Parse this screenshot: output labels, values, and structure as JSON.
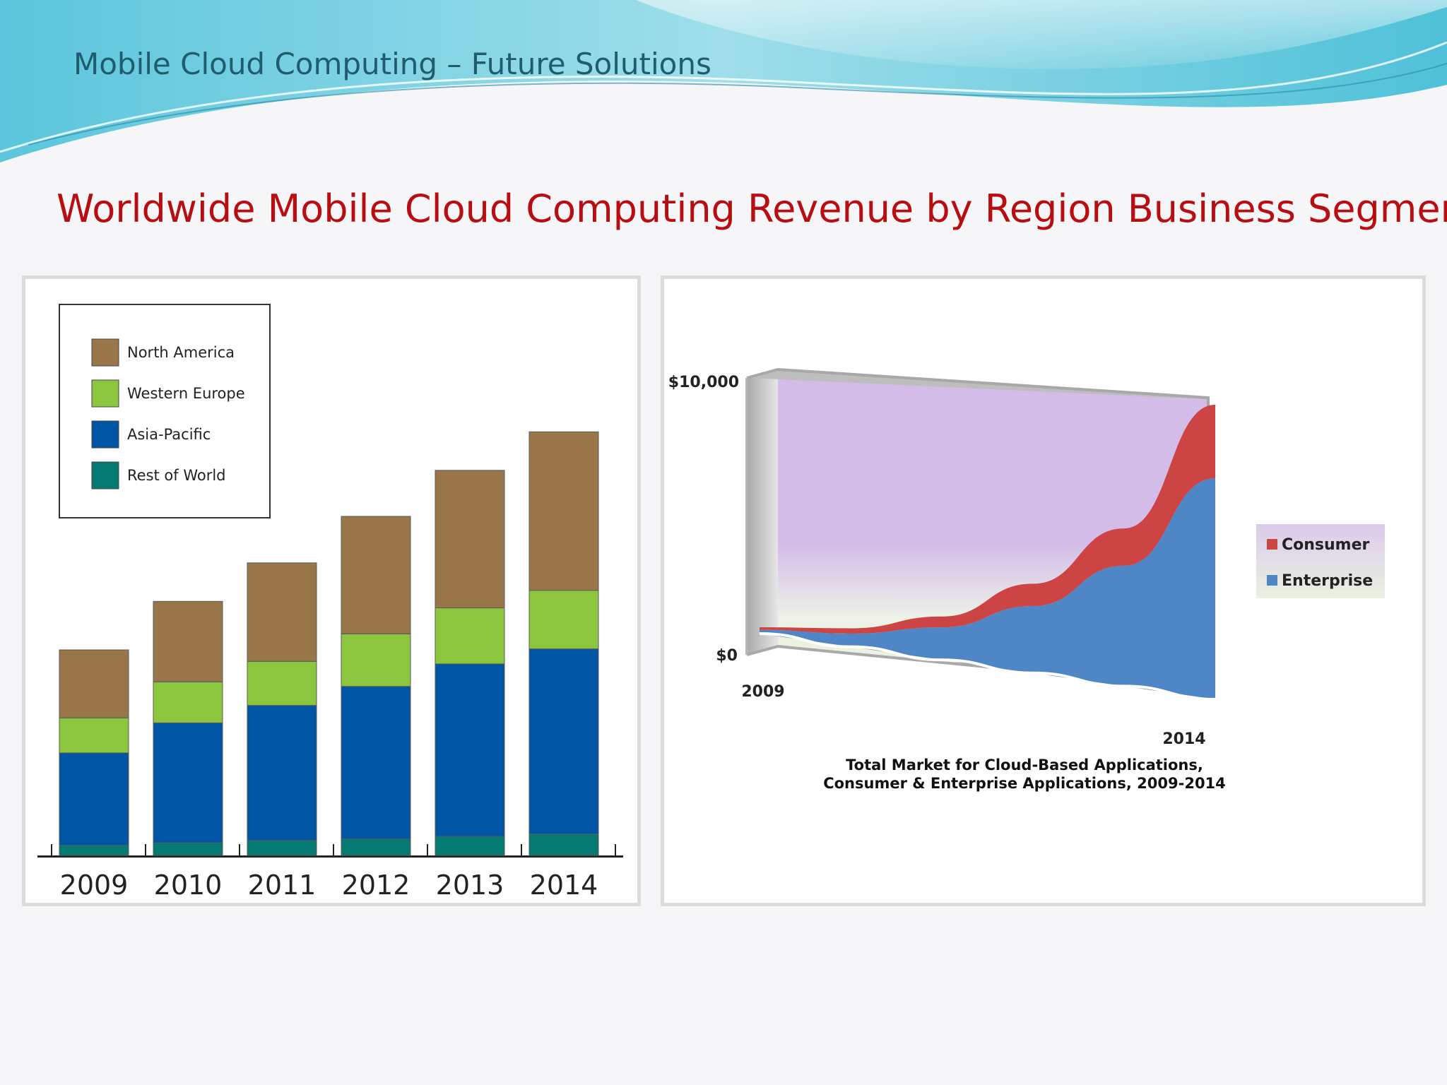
{
  "header": {
    "title": "Mobile Cloud Computing – Future Solutions"
  },
  "slide": {
    "title": "Worldwide Mobile Cloud Computing Revenue by Region Business Segment"
  },
  "colors": {
    "north_america": "#98764a",
    "western_europe": "#8cc63f",
    "asia_pacific": "#0055a5",
    "rest_of_world": "#057a73",
    "consumer": "#cc4444",
    "enterprise": "#4f86c6",
    "back_wall": "#d3bde8",
    "header_title": "#1f5d6e",
    "slide_title": "#b80e12"
  },
  "chart_data": [
    {
      "type": "bar",
      "stacked": true,
      "categories": [
        "2009",
        "2010",
        "2011",
        "2012",
        "2013",
        "2014"
      ],
      "series": [
        {
          "name": "Rest of World",
          "values": [
            2,
            2.5,
            3,
            3.3,
            3.8,
            4.3
          ]
        },
        {
          "name": "Asia-Pacific",
          "values": [
            18.5,
            24,
            27,
            30.5,
            34.5,
            37
          ]
        },
        {
          "name": "Western Europe",
          "values": [
            7,
            8.2,
            8.8,
            10.5,
            11.2,
            11.7
          ]
        },
        {
          "name": "North America",
          "values": [
            13.6,
            16.1,
            19.7,
            23.5,
            27.5,
            31.7
          ]
        }
      ],
      "title": "",
      "xlabel": "",
      "ylabel": "",
      "ylim": [
        0,
        100
      ],
      "legend": {
        "placement": "top-left",
        "order": [
          "North America",
          "Western Europe",
          "Asia-Pacific",
          "Rest of World"
        ]
      },
      "grid": false
    },
    {
      "type": "area",
      "stacked": true,
      "x": [
        2009,
        2010,
        2011,
        2012,
        2013,
        2014
      ],
      "x_tick_labels": [
        "2009",
        "2014"
      ],
      "series": [
        {
          "name": "Enterprise",
          "values": [
            150,
            500,
            1200,
            2400,
            4200,
            7500
          ]
        },
        {
          "name": "Consumer",
          "values": [
            100,
            200,
            400,
            800,
            1300,
            2500
          ]
        }
      ],
      "y_tick_labels": [
        "$0",
        "$10,000"
      ],
      "ylim": [
        0,
        10000
      ],
      "caption_line1": "Total Market for Cloud-Based Applications,",
      "caption_line2": "Consumer & Enterprise Applications, 2009-2014",
      "legend": {
        "placement": "right",
        "order": [
          "Consumer",
          "Enterprise"
        ]
      },
      "grid": false,
      "style": "3d"
    }
  ]
}
